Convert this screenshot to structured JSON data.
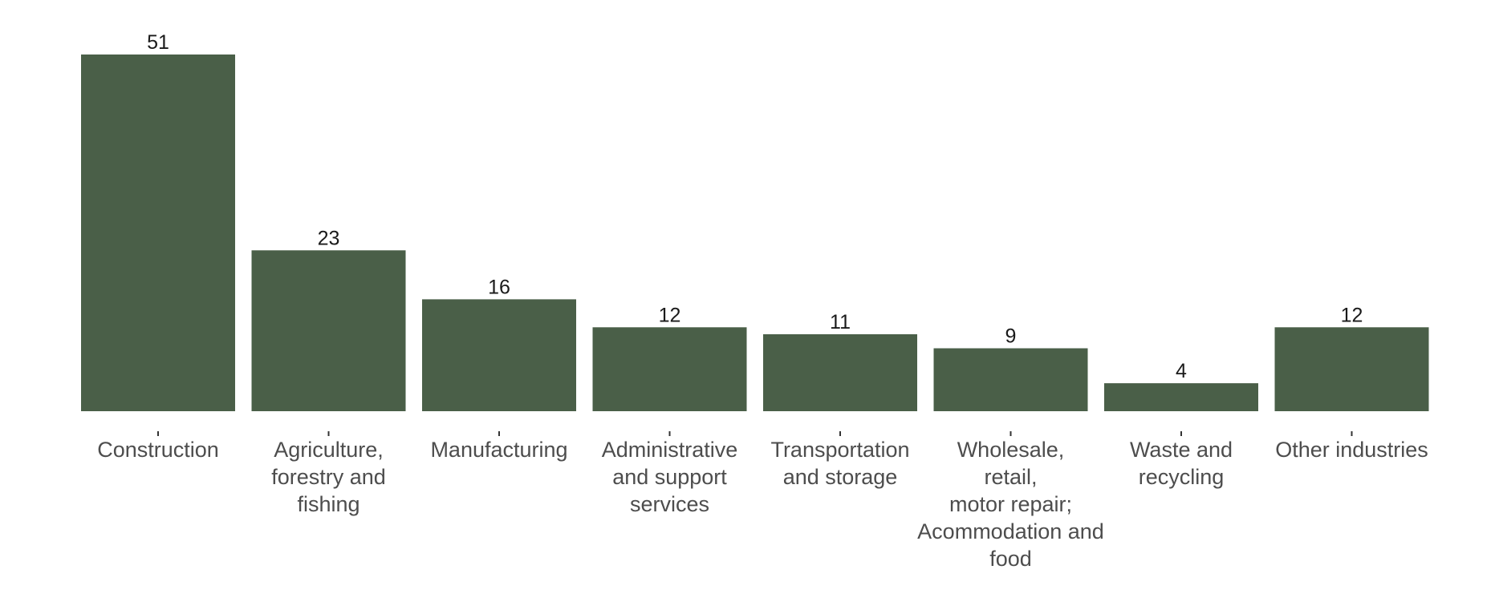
{
  "chart_data": {
    "type": "bar",
    "categories": [
      [
        "Construction"
      ],
      [
        "Agriculture,",
        "forestry and",
        "fishing"
      ],
      [
        "Manufacturing"
      ],
      [
        "Administrative",
        "and support",
        "services"
      ],
      [
        "Transportation",
        "and storage"
      ],
      [
        "Wholesale,",
        "retail,",
        "motor repair;",
        "Acommodation and",
        "food"
      ],
      [
        "Waste and",
        "recycling"
      ],
      [
        "Other industries"
      ]
    ],
    "values": [
      51,
      23,
      16,
      12,
      11,
      9,
      4,
      12
    ],
    "data_labels": [
      "51",
      "23",
      "16",
      "12",
      "11",
      "9",
      "4",
      "12"
    ],
    "title": "",
    "xlabel": "",
    "ylabel": "",
    "ylim": [
      0,
      51
    ],
    "grid": false,
    "bar_color": "#4a5f48"
  }
}
